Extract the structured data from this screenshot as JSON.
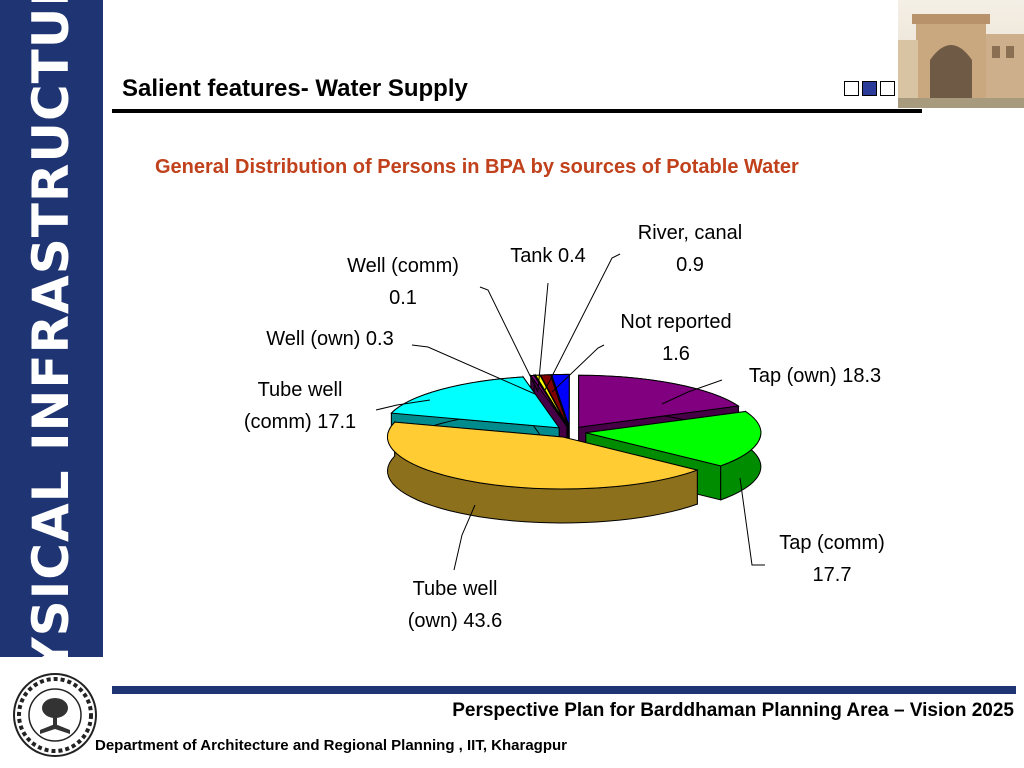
{
  "sidebar": {
    "title": "PHYSICAL INFRASTRUCTURE"
  },
  "header": {
    "title": "Salient features- Water Supply"
  },
  "chart_data": {
    "type": "pie",
    "title": "General Distribution of Persons in BPA by sources of Potable Water",
    "slices": [
      {
        "label": "Tap (own) 18.3",
        "value": 18.3,
        "color": "#800080"
      },
      {
        "label": "Tap (comm) 17.7",
        "value": 17.7,
        "color": "#00ff00"
      },
      {
        "label": "Tube well (own) 43.6",
        "value": 43.6,
        "color": "#ffcc33"
      },
      {
        "label": "Tube well (comm) 17.1",
        "value": 17.1,
        "color": "#00ffff"
      },
      {
        "label": "Well (own) 0.3",
        "value": 0.3,
        "color": "#800080"
      },
      {
        "label": "Well (comm) 0.1",
        "value": 0.1,
        "color": "#ffffff"
      },
      {
        "label": "Tank 0.4",
        "value": 0.4,
        "color": "#ffff00"
      },
      {
        "label": "River, canal 0.9",
        "value": 0.9,
        "color": "#800000"
      },
      {
        "label": "Not reported 1.6",
        "value": 1.6,
        "color": "#0000ff"
      }
    ],
    "legend": "none"
  },
  "footer": {
    "plan": "Perspective Plan for Barddhaman Planning Area – Vision 2025",
    "department": "Department of Architecture and Regional Planning , IIT, Kharagpur"
  }
}
